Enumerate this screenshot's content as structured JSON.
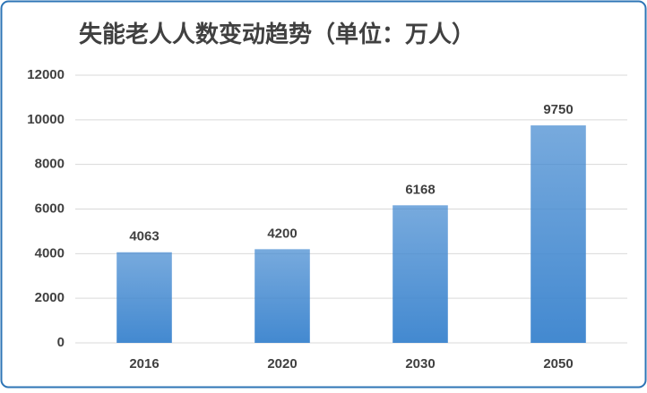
{
  "chart_data": {
    "type": "bar",
    "title": "失能老人人数变动趋势（单位：万人）",
    "categories": [
      "2016",
      "2020",
      "2030",
      "2050"
    ],
    "values": [
      4063,
      4200,
      6168,
      9750
    ],
    "color": "#4389d0",
    "ylim": [
      0,
      12000
    ],
    "yticks": [
      0,
      2000,
      4000,
      6000,
      8000,
      10000,
      12000
    ],
    "grid": true
  }
}
